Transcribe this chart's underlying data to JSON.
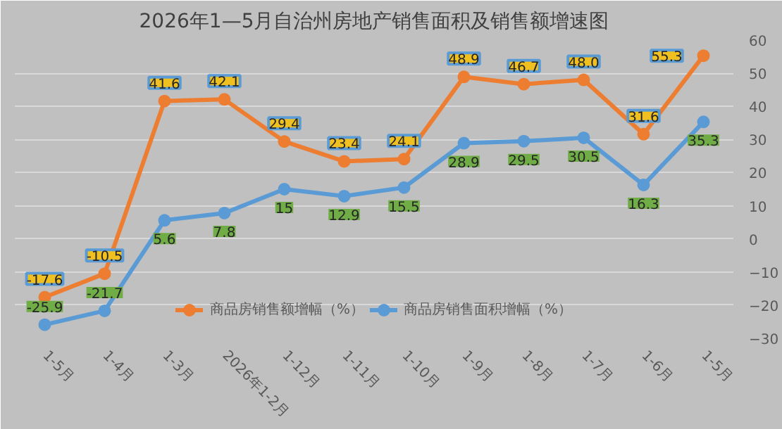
{
  "chart_data": {
    "type": "line",
    "title": "2026年1—5月自治州房地产销售面积及销售额增速图",
    "categories": [
      "1-5月",
      "1-4月",
      "1-3月",
      "2026年1-2月",
      "1-12月",
      "1-11月",
      "1-10月",
      "1-9月",
      "1-8月",
      "1-7月",
      "1-6月",
      "1-5月"
    ],
    "series": [
      {
        "name": "商品房销售额增幅（%）",
        "color": "#ed7d31",
        "values": [
          -17.6,
          -10.5,
          41.6,
          42.1,
          29.4,
          23.4,
          24.1,
          48.9,
          46.7,
          48.0,
          31.6,
          55.3
        ],
        "value_labels": [
          "-17.6",
          "-10.5",
          "41.6",
          "42.1",
          "29.4",
          "23.4",
          "24.1",
          "48.9",
          "46.7",
          "48.0",
          "31.6",
          "55.3"
        ]
      },
      {
        "name": "商品房销售面积增幅（%）",
        "color": "#5b9bd5",
        "values": [
          -25.9,
          -21.7,
          5.6,
          7.8,
          15,
          12.9,
          15.5,
          28.9,
          29.5,
          30.5,
          16.3,
          35.3
        ],
        "value_labels": [
          "-25.9",
          "-21.7",
          "5.6",
          "7.8",
          "15",
          "12.9",
          "15.5",
          "28.9",
          "29.5",
          "30.5",
          "16.3",
          "35.3"
        ]
      }
    ],
    "ylim": [
      -30,
      60
    ],
    "yticks": [
      -30,
      -20,
      -10,
      0,
      10,
      20,
      30,
      40,
      50,
      60
    ],
    "grid": "y",
    "legend": "bottom",
    "marker": "circle",
    "line_style": "solid"
  }
}
